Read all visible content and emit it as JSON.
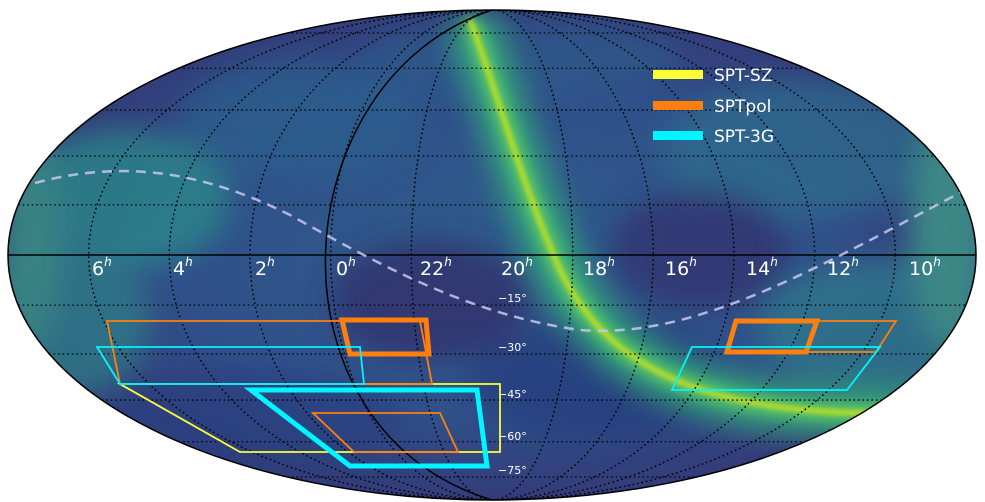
{
  "map": {
    "projection": "mollweide",
    "background_colormap": "viridis",
    "grid": "dotted",
    "ecliptic_style": "dashed-white"
  },
  "legend": [
    {
      "label": "SPT-SZ",
      "color": "#ffff33"
    },
    {
      "label": "SPTpol",
      "color": "#ff7f0e"
    },
    {
      "label": "SPT-3G",
      "color": "#00f5ff"
    }
  ],
  "ra_labels": [
    {
      "num": "6",
      "sup": "h"
    },
    {
      "num": "4",
      "sup": "h"
    },
    {
      "num": "2",
      "sup": "h"
    },
    {
      "num": "0",
      "sup": "h"
    },
    {
      "num": "22",
      "sup": "h"
    },
    {
      "num": "20",
      "sup": "h"
    },
    {
      "num": "18",
      "sup": "h"
    },
    {
      "num": "16",
      "sup": "h"
    },
    {
      "num": "14",
      "sup": "h"
    },
    {
      "num": "12",
      "sup": "h"
    },
    {
      "num": "10",
      "sup": "h"
    }
  ],
  "dec_labels": [
    "−15°",
    "−30°",
    "−45°",
    "−60°",
    "−75°"
  ]
}
